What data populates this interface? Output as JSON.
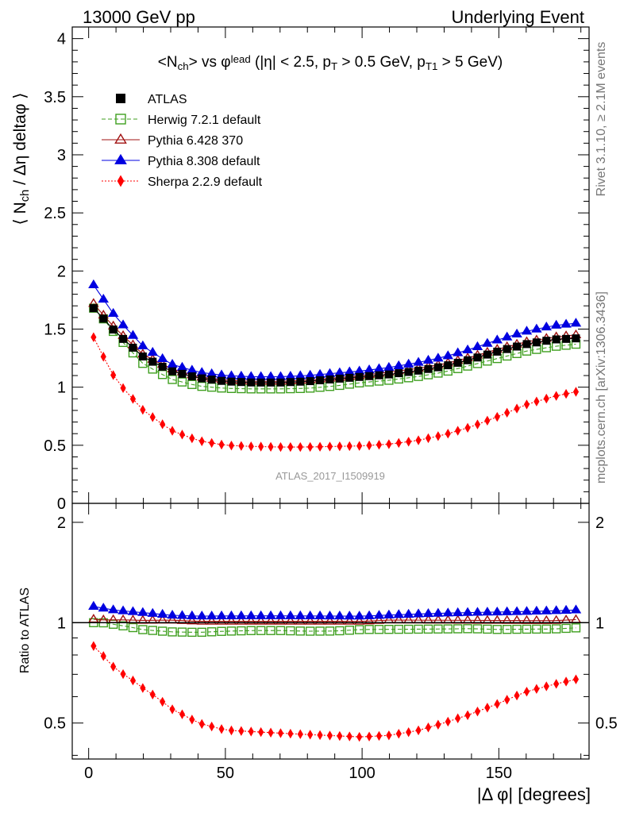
{
  "header": {
    "left": "13000 GeV pp",
    "right": "Underlying Event"
  },
  "side_labels": {
    "rivet": "Rivet 3.1.10, ≥ 2.1M events",
    "mcplots": "mcplots.cern.ch [arXiv:1306.3436]"
  },
  "watermark": "ATLAS_2017_I1509919",
  "chart_data": [
    {
      "type": "scatter",
      "title": "<N_ch> vs φ^lead (|η| < 2.5, p_T > 0.5 GeV, p_T1 > 5 GeV)",
      "ylabel": "⟨ N_ch / Δη deltaφ ⟩",
      "xlim": [
        -6,
        183
      ],
      "ylim": [
        0,
        4.1
      ],
      "yticks": [
        "0",
        "0.5",
        "1",
        "1.5",
        "2",
        "2.5",
        "3",
        "3.5",
        "4"
      ],
      "legend_position": "top-left",
      "x_bin_width_deg": 3.6,
      "n_points": 50,
      "series": [
        {
          "name": "ATLAS",
          "color": "#000000",
          "marker": "square-filled",
          "y_knots": [
            [
              1.8,
              1.68
            ],
            [
              5,
              1.6
            ],
            [
              10,
              1.47
            ],
            [
              20,
              1.26
            ],
            [
              30,
              1.14
            ],
            [
              40,
              1.08
            ],
            [
              50,
              1.05
            ],
            [
              60,
              1.04
            ],
            [
              70,
              1.04
            ],
            [
              80,
              1.05
            ],
            [
              90,
              1.07
            ],
            [
              100,
              1.09
            ],
            [
              110,
              1.11
            ],
            [
              120,
              1.14
            ],
            [
              130,
              1.18
            ],
            [
              140,
              1.24
            ],
            [
              150,
              1.31
            ],
            [
              160,
              1.37
            ],
            [
              170,
              1.41
            ],
            [
              178.2,
              1.42
            ]
          ]
        },
        {
          "name": "Herwig 7.2.1 default",
          "color": "#3f9f1f",
          "marker": "square-open",
          "y_knots": [
            [
              1.8,
              1.68
            ],
            [
              5,
              1.6
            ],
            [
              10,
              1.45
            ],
            [
              20,
              1.2
            ],
            [
              30,
              1.07
            ],
            [
              40,
              1.01
            ],
            [
              50,
              0.99
            ],
            [
              60,
              0.985
            ],
            [
              70,
              0.985
            ],
            [
              80,
              0.99
            ],
            [
              90,
              1.01
            ],
            [
              100,
              1.04
            ],
            [
              110,
              1.06
            ],
            [
              120,
              1.09
            ],
            [
              130,
              1.13
            ],
            [
              140,
              1.19
            ],
            [
              150,
              1.25
            ],
            [
              160,
              1.31
            ],
            [
              170,
              1.35
            ],
            [
              178.2,
              1.37
            ]
          ]
        },
        {
          "name": "Pythia 6.428 370",
          "color": "#a01010",
          "marker": "triangle-open",
          "y_knots": [
            [
              1.8,
              1.72
            ],
            [
              5,
              1.63
            ],
            [
              10,
              1.5
            ],
            [
              20,
              1.28
            ],
            [
              30,
              1.16
            ],
            [
              40,
              1.09
            ],
            [
              50,
              1.06
            ],
            [
              60,
              1.05
            ],
            [
              70,
              1.05
            ],
            [
              80,
              1.06
            ],
            [
              90,
              1.08
            ],
            [
              100,
              1.1
            ],
            [
              110,
              1.13
            ],
            [
              120,
              1.16
            ],
            [
              130,
              1.2
            ],
            [
              140,
              1.26
            ],
            [
              150,
              1.33
            ],
            [
              160,
              1.39
            ],
            [
              170,
              1.43
            ],
            [
              178.2,
              1.45
            ]
          ]
        },
        {
          "name": "Pythia 8.308 default",
          "color": "#0000e0",
          "marker": "triangle-filled",
          "y_knots": [
            [
              1.8,
              1.88
            ],
            [
              5,
              1.77
            ],
            [
              10,
              1.6
            ],
            [
              20,
              1.35
            ],
            [
              30,
              1.2
            ],
            [
              40,
              1.13
            ],
            [
              50,
              1.1
            ],
            [
              60,
              1.09
            ],
            [
              70,
              1.09
            ],
            [
              80,
              1.1
            ],
            [
              90,
              1.12
            ],
            [
              100,
              1.14
            ],
            [
              110,
              1.17
            ],
            [
              120,
              1.21
            ],
            [
              130,
              1.26
            ],
            [
              140,
              1.33
            ],
            [
              150,
              1.41
            ],
            [
              160,
              1.48
            ],
            [
              170,
              1.53
            ],
            [
              178.2,
              1.55
            ]
          ]
        },
        {
          "name": "Sherpa 2.2.9 default",
          "color": "#ff0000",
          "marker": "diamond-filled",
          "y_knots": [
            [
              1.8,
              1.43
            ],
            [
              5,
              1.28
            ],
            [
              10,
              1.06
            ],
            [
              20,
              0.8
            ],
            [
              30,
              0.63
            ],
            [
              40,
              0.54
            ],
            [
              50,
              0.5
            ],
            [
              60,
              0.49
            ],
            [
              70,
              0.485
            ],
            [
              80,
              0.485
            ],
            [
              90,
              0.49
            ],
            [
              100,
              0.495
            ],
            [
              110,
              0.51
            ],
            [
              120,
              0.54
            ],
            [
              130,
              0.59
            ],
            [
              140,
              0.66
            ],
            [
              150,
              0.75
            ],
            [
              160,
              0.85
            ],
            [
              170,
              0.92
            ],
            [
              178.2,
              0.96
            ]
          ]
        }
      ]
    },
    {
      "type": "scatter",
      "xlabel": "|Δ φ| [degrees]",
      "ylabel": "Ratio to ATLAS",
      "xlim": [
        -6,
        183
      ],
      "ylim": [
        0.39,
        2.28
      ],
      "ylog": true,
      "xticks": [
        "0",
        "50",
        "100",
        "150"
      ],
      "yticks": [
        "0.5",
        "1",
        "2"
      ],
      "reference_line": 1.0
    }
  ]
}
